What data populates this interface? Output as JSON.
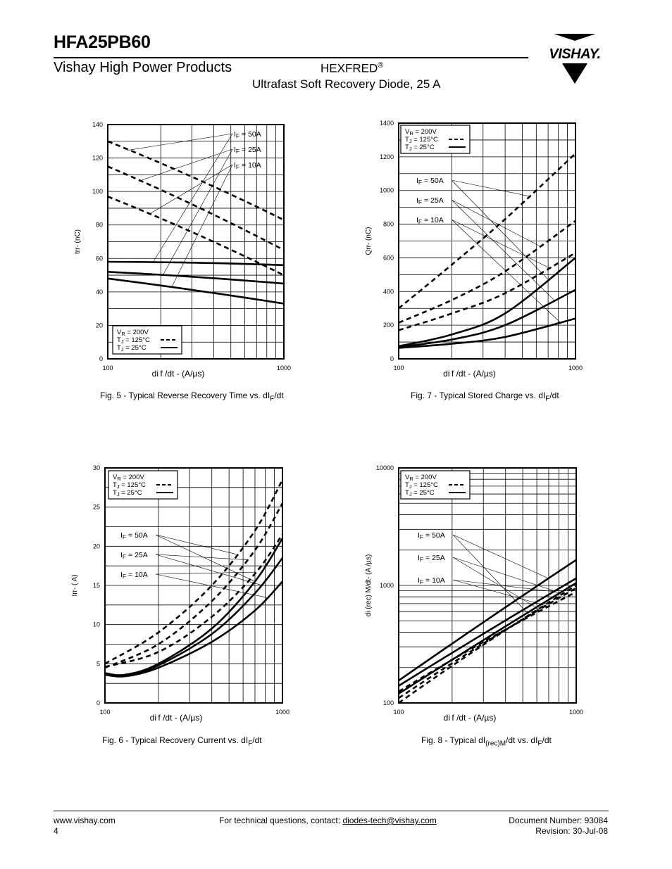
{
  "header": {
    "part_number": "HFA25PB60",
    "company": "Vishay High Power Products",
    "product_line": "HEXFRED",
    "registered_mark": "®",
    "product_description": "Ultrafast Soft Recovery Diode, 25 A",
    "logo_text": "VISHAY."
  },
  "figures": [
    {
      "caption": "Fig. 5 - Typical Reverse Recovery Time vs. dI",
      "caption_sub": "F",
      "caption_end": "/dt"
    },
    {
      "caption": "Fig. 7 - Typical Stored Charge vs. dI",
      "caption_sub": "F",
      "caption_end": "/dt"
    },
    {
      "caption": "Fig. 6 - Typical Recovery Current vs. dI",
      "caption_sub": "F",
      "caption_end": "/dt"
    },
    {
      "caption": "Fig. 8 - Typical dI",
      "caption_sub": "(rec)M",
      "caption_mid": "/dt vs. dI",
      "caption_sub2": "F",
      "caption_end": "/dt"
    }
  ],
  "chart_data": [
    {
      "id": "fig5",
      "type": "line",
      "xscale": "log",
      "xlim": [
        100,
        1000
      ],
      "ylim": [
        0,
        140
      ],
      "yticks": [
        0,
        20,
        40,
        60,
        80,
        100,
        120,
        140
      ],
      "xticks": [
        100,
        1000
      ],
      "xlabel": "di f /dt - (A/µs)",
      "ylabel": "trr- (nC)",
      "grid": true,
      "legend_position": "bottom-left",
      "legend": {
        "vr": "V R = 200V",
        "tj125": "T J = 125°C",
        "tj25": "T J = 25°C"
      },
      "current_labels": [
        "I F = 50A",
        "I F = 25A",
        "I F = 10A"
      ],
      "series": [
        {
          "x": [
            100,
            1000
          ],
          "y": [
            130,
            83
          ],
          "style": "dashed"
        },
        {
          "x": [
            100,
            1000
          ],
          "y": [
            115,
            65
          ],
          "style": "dashed"
        },
        {
          "x": [
            100,
            1000
          ],
          "y": [
            97,
            50
          ],
          "style": "dashed"
        },
        {
          "x": [
            100,
            1000
          ],
          "y": [
            58,
            56
          ],
          "style": "solid"
        },
        {
          "x": [
            100,
            1000
          ],
          "y": [
            52,
            45
          ],
          "style": "solid"
        },
        {
          "x": [
            100,
            1000
          ],
          "y": [
            48,
            33
          ],
          "style": "solid"
        }
      ]
    },
    {
      "id": "fig7",
      "type": "line",
      "xscale": "log",
      "xlim": [
        100,
        1000
      ],
      "ylim": [
        0,
        1400
      ],
      "yticks": [
        0,
        200,
        400,
        600,
        800,
        1000,
        1200,
        1400
      ],
      "xticks": [
        100,
        1000
      ],
      "xlabel": "di f /dt - (A/µs)",
      "ylabel": "Qrr- (nC)",
      "grid": true,
      "legend_position": "top-left",
      "legend": {
        "vr": "V R = 200V",
        "tj125": "T J = 125°C",
        "tj25": "T J = 25°C"
      },
      "current_labels": [
        "I F = 50A",
        "I F = 25A",
        "I F = 10A"
      ],
      "series": [
        {
          "x": [
            100,
            200,
            400,
            1000
          ],
          "y": [
            300,
            560,
            830,
            1220
          ],
          "style": "dashed"
        },
        {
          "x": [
            100,
            200,
            400,
            1000
          ],
          "y": [
            215,
            350,
            520,
            820
          ],
          "style": "dashed"
        },
        {
          "x": [
            100,
            200,
            400,
            1000
          ],
          "y": [
            170,
            270,
            390,
            630
          ],
          "style": "dashed"
        },
        {
          "x": [
            100,
            200,
            400,
            1000
          ],
          "y": [
            75,
            145,
            270,
            600
          ],
          "style": "solid"
        },
        {
          "x": [
            100,
            200,
            400,
            1000
          ],
          "y": [
            70,
            115,
            200,
            410
          ],
          "style": "solid"
        },
        {
          "x": [
            100,
            200,
            400,
            1000
          ],
          "y": [
            65,
            90,
            130,
            240
          ],
          "style": "solid"
        }
      ]
    },
    {
      "id": "fig6",
      "type": "line",
      "xscale": "log",
      "xlim": [
        100,
        1000
      ],
      "ylim": [
        0,
        30
      ],
      "yticks": [
        0,
        5,
        10,
        15,
        20,
        25,
        30
      ],
      "xticks": [
        100,
        1000
      ],
      "xlabel": "di f /dt - (A/µs)",
      "ylabel": "Irr- ( A)",
      "grid": true,
      "legend_position": "top-left",
      "legend": {
        "vr": "V R = 200V",
        "tj125": "T J = 125°C",
        "tj25": "T J = 25°C"
      },
      "current_labels": [
        "I F = 50A",
        "I F = 25A",
        "I F = 10A"
      ],
      "series": [
        {
          "x": [
            100,
            200,
            400,
            700,
            1000
          ],
          "y": [
            5.0,
            9.0,
            15.0,
            22.0,
            28.5
          ],
          "style": "dashed"
        },
        {
          "x": [
            100,
            200,
            400,
            700,
            1000
          ],
          "y": [
            4.5,
            7.5,
            13.0,
            19.5,
            25.5
          ],
          "style": "dashed"
        },
        {
          "x": [
            100,
            200,
            400,
            700,
            1000
          ],
          "y": [
            4.6,
            6.5,
            11.0,
            16.5,
            21.5
          ],
          "style": "dashed"
        },
        {
          "x": [
            100,
            130,
            200,
            400,
            700,
            1000
          ],
          "y": [
            3.8,
            3.6,
            5.0,
            9.5,
            15.5,
            21.0
          ],
          "style": "solid"
        },
        {
          "x": [
            100,
            130,
            200,
            400,
            700,
            1000
          ],
          "y": [
            3.7,
            3.5,
            4.8,
            8.8,
            14.0,
            18.5
          ],
          "style": "solid"
        },
        {
          "x": [
            100,
            130,
            200,
            400,
            700,
            1000
          ],
          "y": [
            3.6,
            3.4,
            4.5,
            7.8,
            11.8,
            15.5
          ],
          "style": "solid"
        }
      ]
    },
    {
      "id": "fig8",
      "type": "line",
      "xscale": "log",
      "yscale": "log",
      "xlim": [
        100,
        1000
      ],
      "ylim": [
        100,
        10000
      ],
      "yticks": [
        100,
        1000,
        10000
      ],
      "xticks": [
        100,
        1000
      ],
      "xlabel": "di f /dt - (A/µs)",
      "ylabel": "di (rec) M/dt- (A /µs)",
      "grid": true,
      "legend_position": "top-left",
      "legend": {
        "vr": "V R = 200V",
        "tj125": "T J = 125°C",
        "tj25": "T J = 25°C"
      },
      "current_labels": [
        "I F = 50A",
        "I F = 25A",
        "I F = 10A"
      ],
      "series": [
        {
          "x": [
            100,
            1000
          ],
          "y": [
            100,
            1000
          ],
          "style": "dashed"
        },
        {
          "x": [
            100,
            1000
          ],
          "y": [
            110,
            950
          ],
          "style": "dashed"
        },
        {
          "x": [
            100,
            1000
          ],
          "y": [
            125,
            880
          ],
          "style": "dashed"
        },
        {
          "x": [
            100,
            1000
          ],
          "y": [
            155,
            1650
          ],
          "style": "solid"
        },
        {
          "x": [
            100,
            1000
          ],
          "y": [
            140,
            1150
          ],
          "style": "solid"
        },
        {
          "x": [
            100,
            1000
          ],
          "y": [
            120,
            1050
          ],
          "style": "solid"
        }
      ]
    }
  ],
  "footer": {
    "website": "www.vishay.com",
    "page_number": "4",
    "contact_prefix": "For technical questions, contact: ",
    "contact_email": "diodes-tech@vishay.com",
    "document_number": "Document Number: 93084",
    "revision": "Revision: 30-Jul-08"
  }
}
